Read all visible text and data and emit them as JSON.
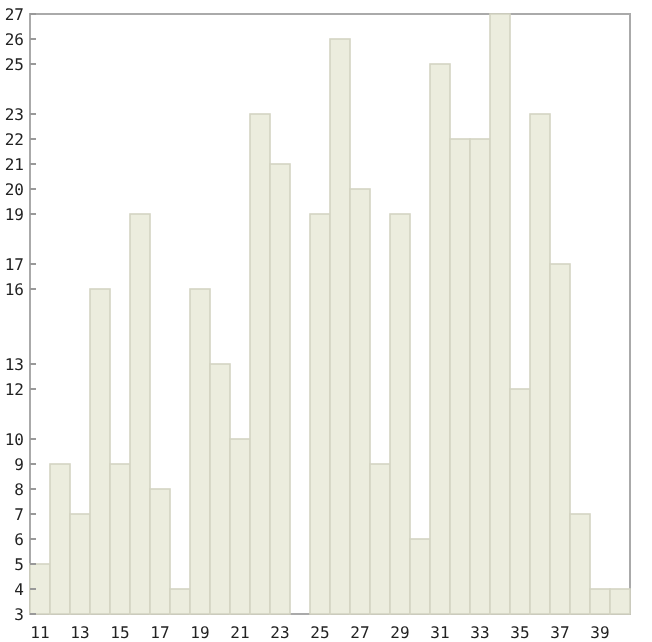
{
  "chart_data": {
    "type": "bar",
    "categories": [
      "11",
      null,
      "13",
      null,
      "15",
      null,
      "17",
      null,
      "19",
      null,
      "21",
      null,
      "23",
      null,
      "25",
      null,
      "27",
      null,
      "29",
      null,
      "31",
      null,
      "33",
      null,
      "35",
      null,
      "37",
      null,
      "39",
      null
    ],
    "values": [
      5,
      9,
      7,
      16,
      9,
      19,
      8,
      4,
      16,
      13,
      10,
      23,
      21,
      3,
      19,
      26,
      20,
      9,
      19,
      6,
      25,
      22,
      22,
      27,
      12,
      23,
      17,
      7,
      4,
      4
    ],
    "color": "#ecedde",
    "ylim": [
      3,
      27
    ],
    "yticks": [
      3,
      4,
      5,
      6,
      7,
      8,
      9,
      10,
      12,
      13,
      16,
      17,
      19,
      20,
      21,
      22,
      23,
      25,
      26,
      27
    ],
    "grid": false
  }
}
